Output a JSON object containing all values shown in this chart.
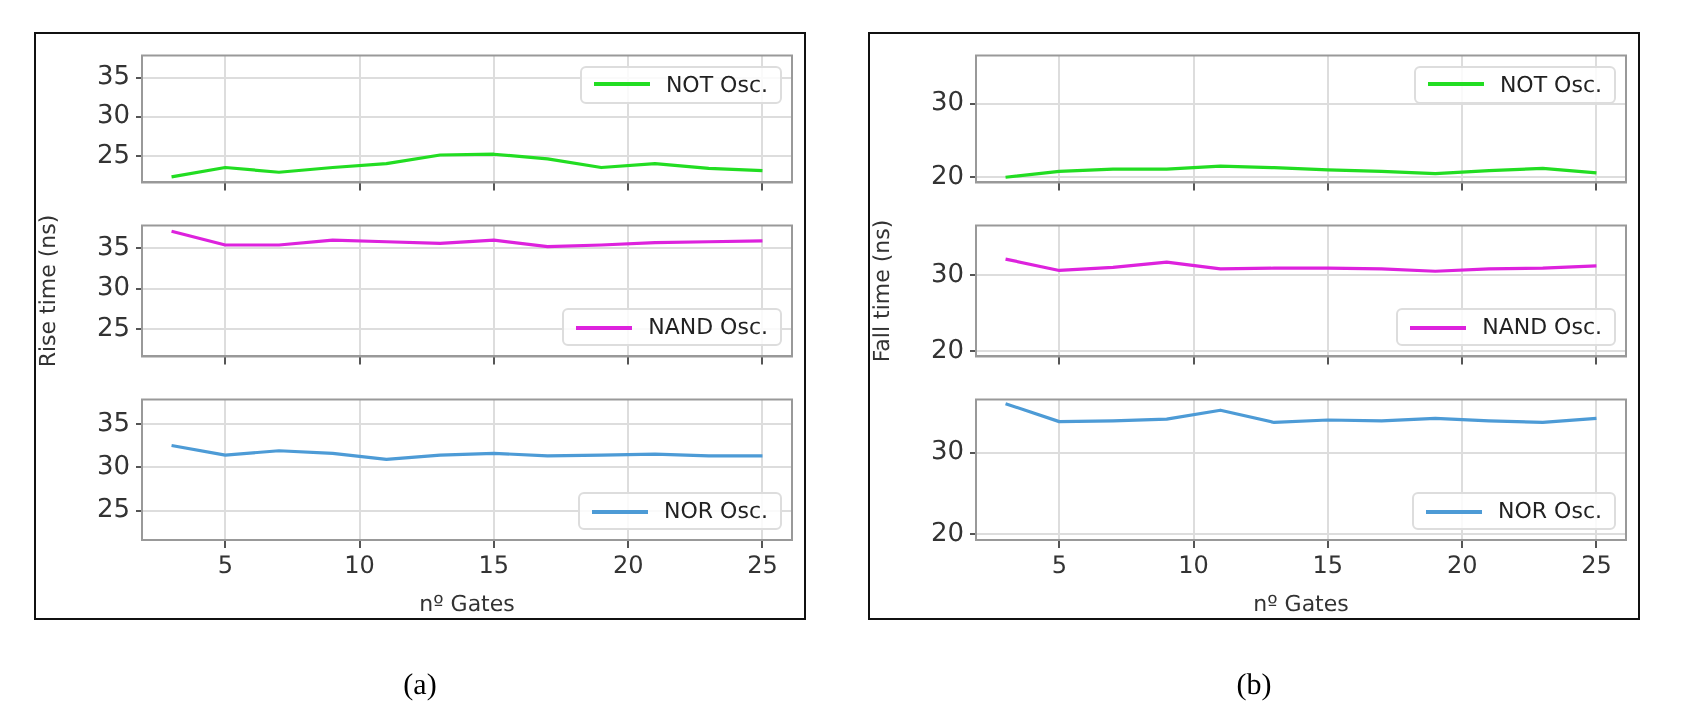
{
  "chart_data": [
    {
      "type": "line",
      "x": [
        3,
        5,
        7,
        9,
        11,
        13,
        15,
        17,
        19,
        21,
        23,
        25
      ],
      "series": [
        {
          "name": "NOT Osc.",
          "color": "#22dd22",
          "values": [
            22.3,
            23.5,
            22.9,
            23.5,
            24.0,
            25.1,
            25.2,
            24.6,
            23.5,
            24.0,
            23.4,
            23.1
          ]
        }
      ],
      "xlim": [
        1.9,
        26.1
      ],
      "xticks": [
        5,
        10,
        15,
        20,
        25
      ],
      "ylim": [
        21.6,
        37.8
      ],
      "yticks": [
        25,
        30,
        35
      ],
      "grid": true,
      "legend": "top right",
      "tick_labels": "y"
    },
    {
      "type": "line",
      "x": [
        3,
        5,
        7,
        9,
        11,
        13,
        15,
        17,
        19,
        21,
        23,
        25
      ],
      "series": [
        {
          "name": "NAND Osc.",
          "color": "#dd22dd",
          "values": [
            37.1,
            35.4,
            35.4,
            36.0,
            35.8,
            35.6,
            36.0,
            35.2,
            35.4,
            35.7,
            35.8,
            35.9
          ]
        }
      ],
      "xlim": [
        1.9,
        26.1
      ],
      "xticks": [
        5,
        10,
        15,
        20,
        25
      ],
      "ylim": [
        21.6,
        37.8
      ],
      "yticks": [
        25,
        30,
        35
      ],
      "ylabel": "Rise time (ns)",
      "grid": true,
      "legend": "bottom right",
      "tick_labels": "y"
    },
    {
      "type": "line",
      "x": [
        3,
        5,
        7,
        9,
        11,
        13,
        15,
        17,
        19,
        21,
        23,
        25
      ],
      "series": [
        {
          "name": "NOR Osc.",
          "color": "#4d9bd6",
          "values": [
            32.5,
            31.4,
            31.9,
            31.6,
            30.9,
            31.4,
            31.6,
            31.3,
            31.4,
            31.5,
            31.3,
            31.3
          ]
        }
      ],
      "xlim": [
        1.9,
        26.1
      ],
      "xticks": [
        5,
        10,
        15,
        20,
        25
      ],
      "ylim": [
        21.6,
        37.8
      ],
      "yticks": [
        25,
        30,
        35
      ],
      "xlabel": "nº Gates",
      "annotations": [
        "(a)"
      ],
      "grid": true,
      "legend": "bottom right"
    },
    {
      "type": "line",
      "x": [
        3,
        5,
        7,
        9,
        11,
        13,
        15,
        17,
        19,
        21,
        23,
        25
      ],
      "series": [
        {
          "name": "NOT Osc.",
          "color": "#22dd22",
          "values": [
            20.0,
            20.8,
            21.1,
            21.1,
            21.5,
            21.3,
            21.0,
            20.8,
            20.5,
            20.9,
            21.2,
            20.6
          ]
        }
      ],
      "xlim": [
        1.9,
        26.1
      ],
      "xticks": [
        5,
        10,
        15,
        20,
        25
      ],
      "ylim": [
        19.3,
        36.5
      ],
      "yticks": [
        20,
        30
      ],
      "grid": true,
      "legend": "top right",
      "tick_labels": "y"
    },
    {
      "type": "line",
      "x": [
        3,
        5,
        7,
        9,
        11,
        13,
        15,
        17,
        19,
        21,
        23,
        25
      ],
      "series": [
        {
          "name": "NAND Osc.",
          "color": "#dd22dd",
          "values": [
            32.1,
            30.6,
            31.0,
            31.7,
            30.8,
            30.9,
            30.9,
            30.8,
            30.5,
            30.8,
            30.9,
            31.2
          ]
        }
      ],
      "xlim": [
        1.9,
        26.1
      ],
      "xticks": [
        5,
        10,
        15,
        20,
        25
      ],
      "ylim": [
        19.3,
        36.5
      ],
      "yticks": [
        20,
        30
      ],
      "ylabel": "Fall time (ns)",
      "grid": true,
      "legend": "bottom right",
      "tick_labels": "y"
    },
    {
      "type": "line",
      "x": [
        3,
        5,
        7,
        9,
        11,
        13,
        15,
        17,
        19,
        21,
        23,
        25
      ],
      "series": [
        {
          "name": "NOR Osc.",
          "color": "#4d9bd6",
          "values": [
            36.0,
            33.8,
            33.9,
            34.1,
            35.2,
            33.7,
            34.0,
            33.9,
            34.2,
            33.9,
            33.7,
            34.2
          ]
        }
      ],
      "xlim": [
        1.9,
        26.1
      ],
      "xticks": [
        5,
        10,
        15,
        20,
        25
      ],
      "ylim": [
        19.3,
        36.5
      ],
      "yticks": [
        20,
        30
      ],
      "xlabel": "nº Gates",
      "annotations": [
        "(b)"
      ],
      "grid": true,
      "legend": "bottom right"
    }
  ]
}
